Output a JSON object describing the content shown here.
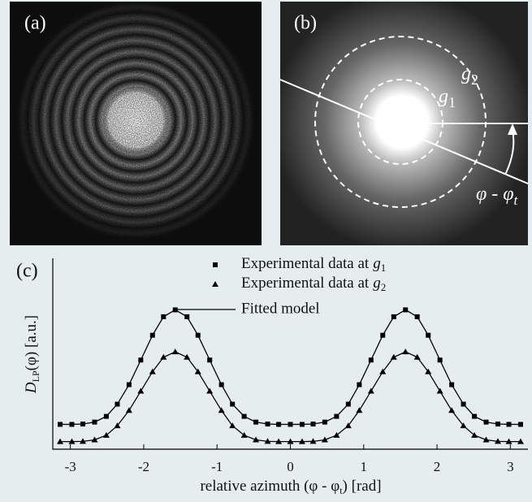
{
  "panels": {
    "a": {
      "label": "(a)"
    },
    "b": {
      "label": "(b)",
      "g2": {
        "symbol": "g",
        "subscript": "2"
      },
      "g1": {
        "symbol": "g",
        "subscript": "1"
      },
      "angle": {
        "text": "φ - φ",
        "subscript": "t"
      }
    }
  },
  "chart_data": {
    "type": "scatter",
    "label": "(c)",
    "xlabel": {
      "text": "relative azimuth (φ - φ",
      "subscript": "t",
      "suffix": ") [rad]"
    },
    "ylabel": {
      "text": "D",
      "subscript": "LP",
      "suffix": "(φ) [a.u.]"
    },
    "xlim": [
      -3.24,
      3.24
    ],
    "ylim": [
      0,
      1
    ],
    "xticks": [
      -3,
      -2,
      -1,
      0,
      1,
      2,
      3
    ],
    "x": [
      -3.14,
      -2.98,
      -2.83,
      -2.67,
      -2.51,
      -2.36,
      -2.2,
      -2.04,
      -1.88,
      -1.73,
      -1.57,
      -1.41,
      -1.26,
      -1.1,
      -0.94,
      -0.79,
      -0.63,
      -0.47,
      -0.31,
      -0.16,
      0,
      0.16,
      0.31,
      0.47,
      0.63,
      0.79,
      0.94,
      1.1,
      1.26,
      1.41,
      1.57,
      1.73,
      1.88,
      2.04,
      2.2,
      2.36,
      2.51,
      2.67,
      2.83,
      2.98,
      3.14
    ],
    "series": [
      {
        "name": "Experimental data at",
        "symbol": "g",
        "subscript": "1",
        "marker": "square",
        "color": "#000000",
        "values": [
          0.13,
          0.13,
          0.132,
          0.142,
          0.172,
          0.236,
          0.338,
          0.467,
          0.597,
          0.694,
          0.73,
          0.694,
          0.597,
          0.467,
          0.338,
          0.236,
          0.172,
          0.142,
          0.132,
          0.13,
          0.13,
          0.13,
          0.132,
          0.142,
          0.172,
          0.236,
          0.338,
          0.467,
          0.597,
          0.694,
          0.73,
          0.694,
          0.597,
          0.467,
          0.338,
          0.236,
          0.172,
          0.142,
          0.132,
          0.13,
          0.13
        ]
      },
      {
        "name": "Experimental data at",
        "symbol": "g",
        "subscript": "2",
        "marker": "triangle",
        "color": "#000000",
        "values": [
          0.04,
          0.04,
          0.041,
          0.049,
          0.073,
          0.123,
          0.203,
          0.304,
          0.406,
          0.482,
          0.51,
          0.482,
          0.406,
          0.304,
          0.203,
          0.123,
          0.073,
          0.049,
          0.041,
          0.04,
          0.04,
          0.04,
          0.041,
          0.049,
          0.073,
          0.123,
          0.203,
          0.304,
          0.406,
          0.482,
          0.51,
          0.482,
          0.406,
          0.304,
          0.203,
          0.123,
          0.073,
          0.049,
          0.041,
          0.04,
          0.04
        ]
      }
    ],
    "fit": {
      "name": "Fitted model",
      "color": "#000000",
      "curves": [
        [
          0.13,
          0.13,
          0.132,
          0.142,
          0.172,
          0.236,
          0.338,
          0.467,
          0.597,
          0.694,
          0.73,
          0.694,
          0.597,
          0.467,
          0.338,
          0.236,
          0.172,
          0.142,
          0.132,
          0.13,
          0.13,
          0.13,
          0.132,
          0.142,
          0.172,
          0.236,
          0.338,
          0.467,
          0.597,
          0.694,
          0.73,
          0.694,
          0.597,
          0.467,
          0.338,
          0.236,
          0.172,
          0.142,
          0.132,
          0.13,
          0.13
        ],
        [
          0.04,
          0.04,
          0.041,
          0.049,
          0.073,
          0.123,
          0.203,
          0.304,
          0.406,
          0.482,
          0.51,
          0.482,
          0.406,
          0.304,
          0.203,
          0.123,
          0.073,
          0.049,
          0.041,
          0.04,
          0.04,
          0.04,
          0.041,
          0.049,
          0.073,
          0.123,
          0.203,
          0.304,
          0.406,
          0.482,
          0.51,
          0.482,
          0.406,
          0.304,
          0.203,
          0.123,
          0.073,
          0.049,
          0.041,
          0.04,
          0.04
        ]
      ]
    }
  }
}
